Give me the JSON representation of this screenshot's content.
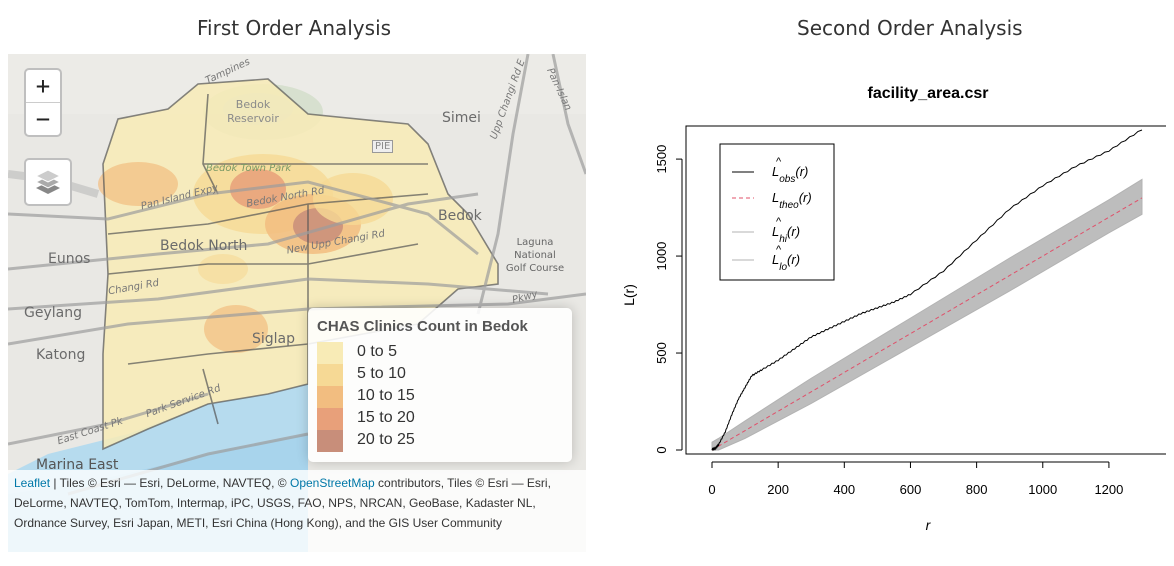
{
  "left_panel": {
    "title": "First Order Analysis",
    "zoom_in_label": "+",
    "zoom_out_label": "−",
    "map_labels": {
      "bedok_reservoir": "Bedok Reservoir",
      "simei": "Simei",
      "pie": "PIE",
      "bedok_town_park": "Bedok Town Park",
      "pan_island_expy": "Pan Island Expy",
      "bedok_north_rd": "Bedok North Rd",
      "bedok_north": "Bedok North",
      "new_upp_changi_rd": "New Upp Changi Rd",
      "bedok": "Bedok",
      "laguna": "Laguna National Golf Course",
      "eunos": "Eunos",
      "changi_rd": "Changi Rd",
      "geylang": "Geylang",
      "siglap": "Siglap",
      "katong": "Katong",
      "park_service_rd": "Park Service Rd",
      "east_coast_pk": "East Coast Pk",
      "marina_east": "Marina East",
      "upp_changi_rd_e": "Upp Changi Rd E",
      "pan_island": "Pan-Islan",
      "tampines": "Tampines",
      "pkwy": "Pkwy"
    },
    "legend": {
      "title": "CHAS Clinics Count in Bedok",
      "items": [
        {
          "label": "0 to 5",
          "color": "#f8ebb6"
        },
        {
          "label": "5 to 10",
          "color": "#f6d995"
        },
        {
          "label": "10 to 15",
          "color": "#f2bd80"
        },
        {
          "label": "15 to 20",
          "color": "#e8a07a"
        },
        {
          "label": "20 to 25",
          "color": "#c88e7a"
        }
      ]
    },
    "attribution": {
      "leaflet_link": "Leaflet",
      "text1": " | Tiles © Esri — Esri, DeLorme, NAVTEQ, © ",
      "osm_link": "OpenStreetMap",
      "text2": " contributors, Tiles © Esri — Esri, DeLorme, NAVTEQ, TomTom, Intermap, iPC, USGS, FAO, NPS, NRCAN, GeoBase, Kadaster NL, Ordnance Survey, Esri Japan, METI, Esri China (Hong Kong), and the GIS User Community"
    }
  },
  "right_panel": {
    "title": "Second Order Analysis"
  },
  "chart_data": {
    "type": "line",
    "title": "facility_area.csr",
    "xlabel": "r",
    "ylabel": "L(r)",
    "xlim": [
      0,
      1300
    ],
    "ylim": [
      0,
      1650
    ],
    "x_ticks": [
      "0",
      "200",
      "400",
      "600",
      "800",
      "1000",
      "1200"
    ],
    "y_ticks": [
      "0",
      "500",
      "1000",
      "1500"
    ],
    "legend_position": "top-left",
    "series": [
      {
        "name": "L̂obs(r)",
        "style": "solid",
        "color": "#000000",
        "x": [
          0,
          10,
          20,
          40,
          60,
          80,
          100,
          120,
          150,
          200,
          250,
          300,
          350,
          400,
          450,
          500,
          550,
          600,
          700,
          800,
          900,
          1000,
          1100,
          1200,
          1300
        ],
        "y": [
          0,
          5,
          25,
          90,
          180,
          260,
          320,
          380,
          410,
          460,
          520,
          580,
          620,
          660,
          700,
          730,
          760,
          800,
          920,
          1080,
          1240,
          1360,
          1460,
          1540,
          1650
        ]
      },
      {
        "name": "Ltheo(r)",
        "style": "dashed",
        "color": "#e0506a",
        "x": [
          0,
          1300
        ],
        "y": [
          0,
          1300
        ]
      },
      {
        "name": "L̂hi(r)",
        "style": "solid",
        "color": "#b3b3b3",
        "x": [
          0,
          20,
          100,
          300,
          600,
          900,
          1200,
          1300
        ],
        "y": [
          40,
          60,
          150,
          370,
          680,
          990,
          1290,
          1395
        ]
      },
      {
        "name": "L̂lo(r)",
        "style": "solid",
        "color": "#b3b3b3",
        "x": [
          0,
          20,
          100,
          300,
          600,
          900,
          1200,
          1300
        ],
        "y": [
          0,
          0,
          60,
          240,
          530,
          820,
          1120,
          1215
        ]
      }
    ],
    "legend_labels": [
      {
        "main": "L",
        "sub": "obs",
        "suffix": "(r)",
        "hat": true
      },
      {
        "main": "L",
        "sub": "theo",
        "suffix": "(r)",
        "hat": false
      },
      {
        "main": "L",
        "sub": "hi",
        "suffix": "(r)",
        "hat": true
      },
      {
        "main": "L",
        "sub": "lo",
        "suffix": "(r)",
        "hat": true
      }
    ]
  }
}
